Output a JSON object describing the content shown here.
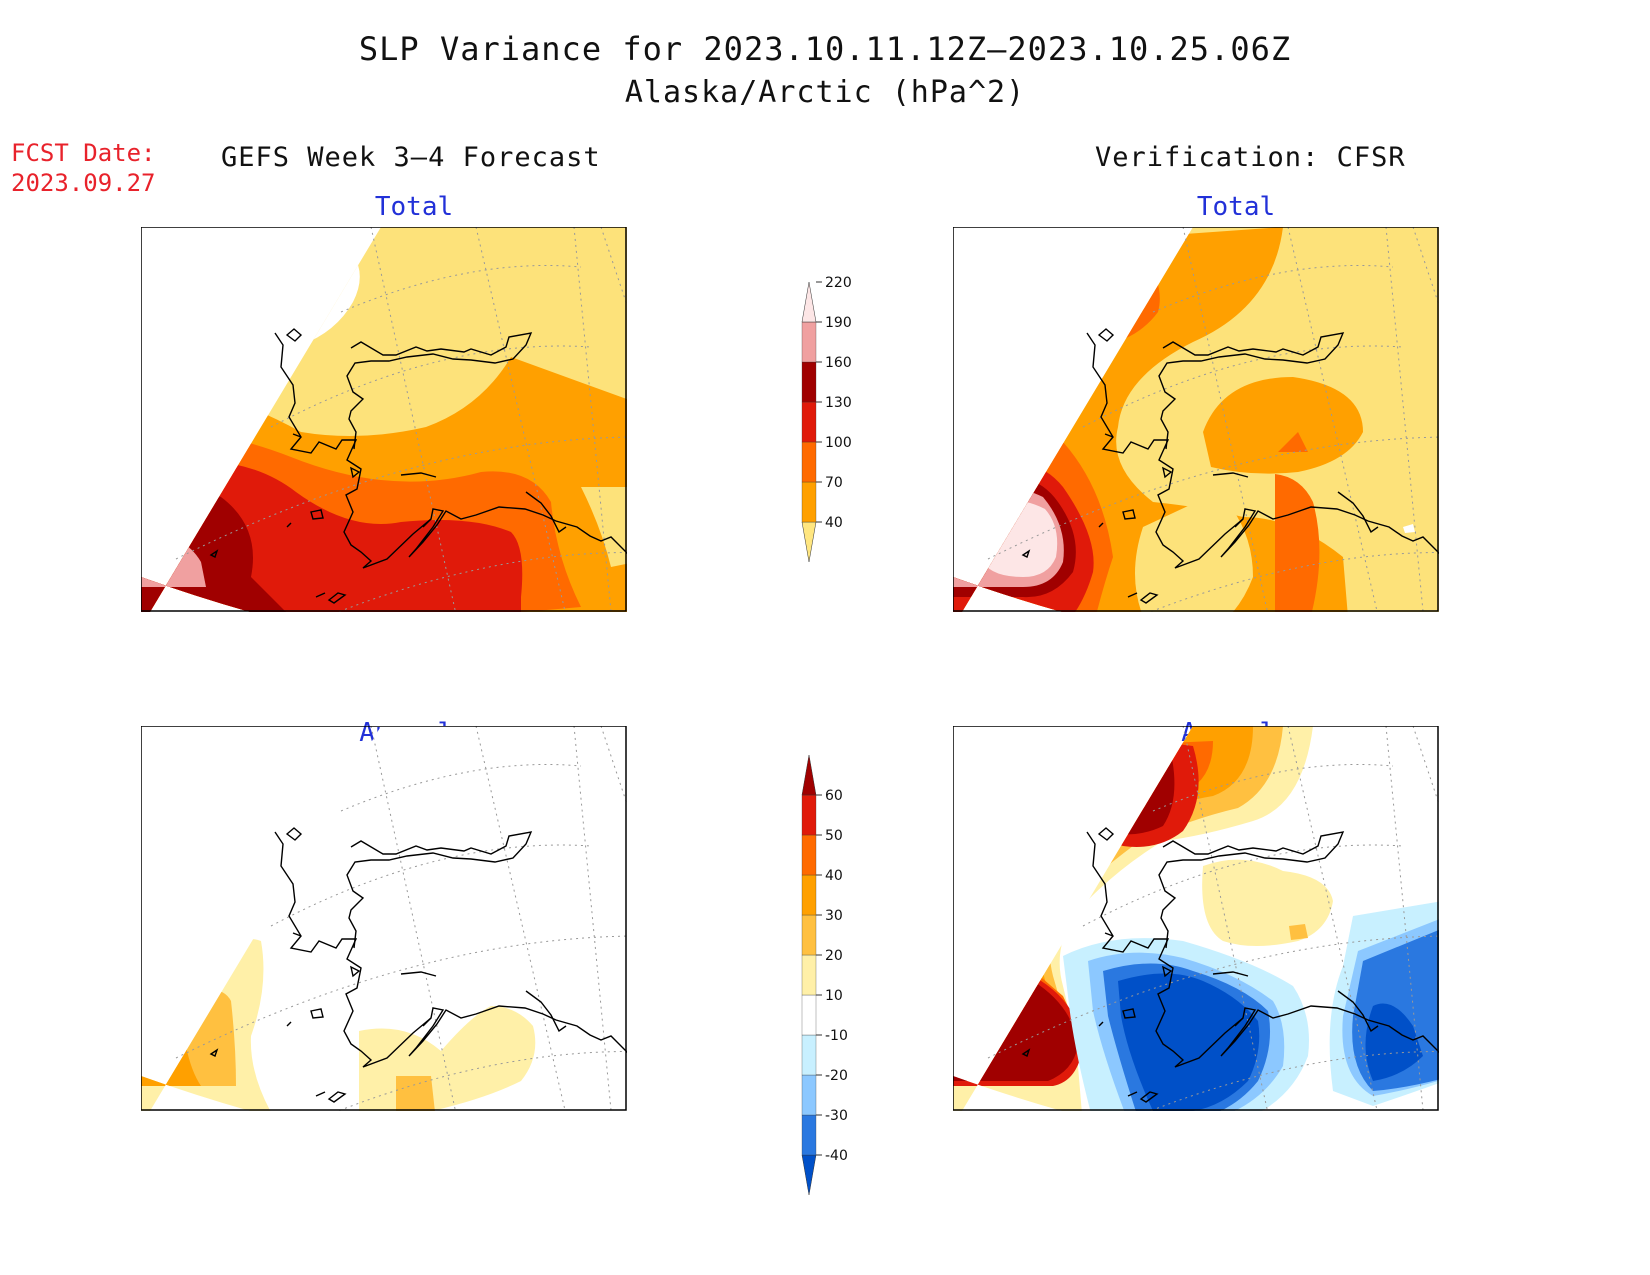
{
  "title": "SLP Variance for 2023.10.11.12Z–2023.10.25.06Z",
  "subtitle": "Alaska/Arctic (hPa^2)",
  "fcst_date": {
    "label": "FCST Date:",
    "value": "2023.09.27"
  },
  "left_column_title": "GEFS Week 3–4 Forecast",
  "right_column_title": "Verification: CFSR",
  "panels": {
    "forecast_total": "Total",
    "verification_total": "Total",
    "forecast_anomaly": "Anomaly",
    "verification_anomaly": "Anomaly"
  },
  "colorbars": {
    "total": {
      "levels": [
        "40",
        "70",
        "100",
        "130",
        "160",
        "190",
        "220"
      ],
      "colors": [
        "#ffe680",
        "#ffa000",
        "#ff6a00",
        "#e01a0a",
        "#a00000",
        "#f0a0a0",
        "#fde6e6"
      ]
    },
    "anomaly": {
      "levels": [
        "-40",
        "-30",
        "-20",
        "-10",
        "10",
        "20",
        "30",
        "40",
        "50",
        "60"
      ],
      "colors": [
        "#0050c8",
        "#2a78e0",
        "#8cc8ff",
        "#c8f0ff",
        "#ffffff",
        "#fff0a8",
        "#ffc040",
        "#ffa000",
        "#ff6a00",
        "#e01a0a",
        "#a00000"
      ]
    }
  },
  "map_colors": {
    "total_40_70": "#fde27a",
    "total_70_100": "#ffa000",
    "total_100_130": "#ff6a00",
    "total_130_160": "#e01a0a",
    "total_160_190": "#a00000",
    "total_190_220": "#f0a0a0",
    "total_above_220": "#fde6e6",
    "anom_10_20": "#fff0a8",
    "anom_20_30": "#ffc040",
    "anom_30_40": "#ffa000",
    "anom_40_50": "#ff6a00",
    "anom_50_60": "#e01a0a",
    "anom_above_60": "#a00000",
    "anom_m10_m20": "#c8f0ff",
    "anom_m20_m30": "#8cc8ff",
    "anom_m30_m40": "#2a78e0",
    "anom_below_m40": "#0050c8"
  }
}
